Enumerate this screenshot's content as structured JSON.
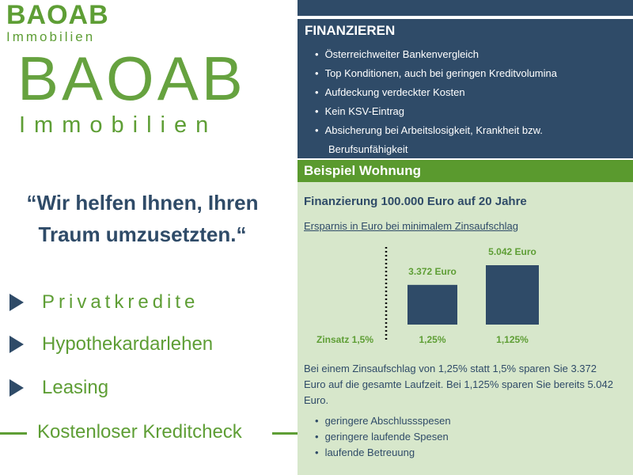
{
  "logo": {
    "brand": "BAOAB",
    "sub": "Immobilien"
  },
  "quote": {
    "line1": "“Wir helfen Ihnen, Ihren",
    "line2": "Traum umzusetzten.“"
  },
  "services": [
    "Privatkredite",
    "Hypothekardarlehen",
    "Leasing"
  ],
  "kreditcheck": "Kostenloser Kreditcheck",
  "finanzieren": {
    "title": "FINANZIEREN",
    "items": [
      "Österreichweiter Bankenvergleich",
      "Top Konditionen, auch bei geringen Kreditvolumina",
      "Aufdeckung verdeckter Kosten",
      "Kein KSV-Eintrag",
      "Absicherung bei Arbeitslosigkeit, Krankheit bzw."
    ],
    "item_cont": "Berufsunfähigkeit"
  },
  "beispiel": {
    "title": "Beispiel Wohnung",
    "subtitle": "Finanzierung 100.000 Euro auf 20 Jahre",
    "chart_caption": "Ersparnis in Euro bei minimalem Zinsaufschlag",
    "paragraph": "Bei einem Zinsaufschlag von 1,25% statt 1,5% sparen Sie 3.372 Euro auf die gesamte Laufzeit. Bei 1,125% sparen Sie bereits 5.042 Euro.",
    "benefits": [
      "geringere Abschlussspesen",
      "geringere laufende Spesen",
      "laufende Betreuung"
    ]
  },
  "chart_data": {
    "type": "bar",
    "title": "Ersparnis in Euro bei minimalem Zinsaufschlag",
    "baseline_label": "Zinsatz 1,5%",
    "categories": [
      "1,25%",
      "1,125%"
    ],
    "values": [
      3372,
      5042
    ],
    "data_labels": [
      "3.372 Euro",
      "5.042 Euro"
    ],
    "bar_color": "#2f4b68"
  },
  "colors": {
    "navy": "#2f4b68",
    "green": "#5e9e35",
    "light_green": "#d7e7cb"
  }
}
